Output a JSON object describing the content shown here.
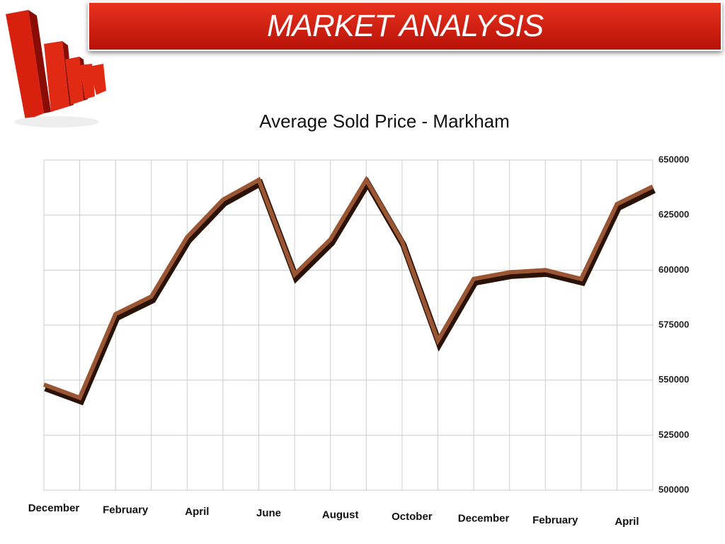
{
  "header": {
    "title": "MARKET ANALYSIS"
  },
  "chart_data": {
    "type": "line",
    "title": "Average Sold Price - Markham",
    "categories": [
      "December",
      null,
      "February",
      null,
      "April",
      null,
      "June",
      null,
      "August",
      null,
      "October",
      null,
      "December",
      null,
      "February",
      null,
      "April",
      null
    ],
    "values": [
      548000,
      542000,
      580000,
      588000,
      615000,
      632000,
      641000,
      598000,
      614000,
      641000,
      613000,
      568000,
      596000,
      599000,
      600000,
      596000,
      630000,
      638000
    ],
    "color": "#9a5632",
    "ylim": [
      500000,
      650000
    ],
    "yticks": [
      500000,
      525000,
      550000,
      575000,
      600000,
      625000,
      650000
    ],
    "grid": true,
    "y_axis_side": "right"
  }
}
